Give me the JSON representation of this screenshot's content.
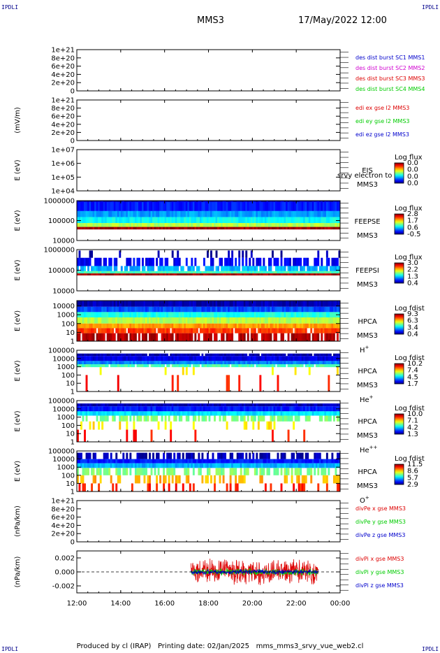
{
  "header": {
    "title": "MMS3",
    "date": "17/May/2022 12:00",
    "corner_label": "IPDLI"
  },
  "footer": {
    "producer": "Produced by cl (IRAP)",
    "printing_date": "Printing date: 02/Jan/2025",
    "filename": "mms_mms3_srvy_vue_web2.cl"
  },
  "colors": {
    "red": "#dd0000",
    "magenta": "#d000d0",
    "green": "#00cc00",
    "blue": "#0000cc",
    "spec_bg_blue": "#0033ff"
  },
  "chart_data": [
    {
      "id": "des-dist",
      "type": "line",
      "ylabel": "",
      "yticks": [
        "0",
        "2e+20",
        "4e+20",
        "6e+20",
        "8e+20",
        "1e+21"
      ],
      "ylim": [
        0,
        1e+21
      ],
      "dashed_zero": true,
      "legend": [
        {
          "text": "des dist burst SC1 MMS1",
          "color": "blue"
        },
        {
          "text": "des dist burst SC2 MMS2",
          "color": "magenta"
        },
        {
          "text": "des dist burst SC3 MMS3",
          "color": "red"
        },
        {
          "text": "des dist burst SC4 MMS4",
          "color": "green"
        }
      ],
      "series": []
    },
    {
      "id": "edi",
      "type": "line",
      "ylabel": "(mV/m)",
      "yticks": [
        "0",
        "2e+20",
        "4e+20",
        "6e+20",
        "8e+20",
        "1e+21"
      ],
      "ylim": [
        0,
        1e+21
      ],
      "dashed_zero": true,
      "legend": [
        {
          "text": "edi ex gse l2 MMS3",
          "color": "red"
        },
        {
          "text": "edi ey gse l2 MMS3",
          "color": "green"
        },
        {
          "text": "edi ez gse l2 MMS3",
          "color": "blue"
        }
      ],
      "series": []
    },
    {
      "id": "eis",
      "type": "heatmap",
      "ylabel": "E (eV)",
      "yticks": [
        "1e+04",
        "1e+05",
        "1e+06",
        "1e+07"
      ],
      "log": true,
      "ylim": [
        10000.0,
        10000000.0
      ],
      "instrument": "EIS",
      "overlay_text": "srvy electron to",
      "sc": "MMS3",
      "species": "",
      "cbar_title": "Log flux",
      "cbar_ticks": [
        "0.0",
        "0.0",
        "0.0",
        "0.0"
      ],
      "bands": []
    },
    {
      "id": "feepse",
      "type": "heatmap",
      "ylabel": "E (eV)",
      "yticks": [
        "10000",
        "100000",
        "1000000"
      ],
      "log": true,
      "ylim": [
        10000.0,
        1000000.0
      ],
      "instrument": "FEEPSE",
      "sc": "MMS3",
      "species": "",
      "cbar_title": "Log flux",
      "cbar_ticks": [
        "2.8",
        "1.7",
        "0.6",
        "-0.5"
      ],
      "bands": [
        {
          "from": 850000,
          "to": 1000000,
          "level": 0.06,
          "fill": 1.0
        },
        {
          "from": 300000,
          "to": 850000,
          "level": 0.15,
          "fill": 1.0
        },
        {
          "from": 150000,
          "to": 300000,
          "level": 0.28,
          "fill": 1.0
        },
        {
          "from": 75000,
          "to": 150000,
          "level": 0.38,
          "fill": 1.0
        },
        {
          "from": 48000,
          "to": 75000,
          "level": 0.55,
          "fill": 1.0
        },
        {
          "from": 36000,
          "to": 48000,
          "level": 0.97,
          "fill": 1.0
        }
      ]
    },
    {
      "id": "feepsi",
      "type": "heatmap",
      "ylabel": "E (eV)",
      "yticks": [
        "10000",
        "100000",
        "1000000"
      ],
      "log": true,
      "ylim": [
        10000.0,
        1000000.0
      ],
      "instrument": "FEEPSI",
      "sc": "MMS3",
      "species": "",
      "cbar_title": "Log flux",
      "cbar_ticks": [
        "3.0",
        "2.2",
        "1.3",
        "0.4"
      ],
      "bands": [
        {
          "from": 400000,
          "to": 900000,
          "level": 0.04,
          "fill": 0.18
        },
        {
          "from": 160000,
          "to": 400000,
          "level": 0.12,
          "fill": 0.55
        },
        {
          "from": 90000,
          "to": 160000,
          "level": 0.3,
          "fill": 0.8
        },
        {
          "from": 70000,
          "to": 90000,
          "level": 0.45,
          "fill": 1.0
        },
        {
          "from": 56000,
          "to": 70000,
          "level": 0.97,
          "fill": 1.0
        }
      ]
    },
    {
      "id": "hpca-h",
      "type": "heatmap",
      "ylabel": "E (eV)",
      "yticks": [
        "1",
        "10",
        "100",
        "1000",
        "10000"
      ],
      "log": true,
      "ylim": [
        1,
        40000
      ],
      "instrument": "HPCA",
      "sc": "MMS3",
      "species": "H",
      "species_sup": "+",
      "cbar_title": "Log fdist",
      "cbar_ticks": [
        "9.3",
        "6.3",
        "3.4",
        "0.4"
      ],
      "bands": [
        {
          "from": 8000,
          "to": 40000,
          "level": 0.05,
          "fill": 1.0
        },
        {
          "from": 2000,
          "to": 8000,
          "level": 0.2,
          "fill": 1.0
        },
        {
          "from": 500,
          "to": 2000,
          "level": 0.4,
          "fill": 1.0
        },
        {
          "from": 100,
          "to": 500,
          "level": 0.55,
          "fill": 1.0
        },
        {
          "from": 30,
          "to": 100,
          "level": 0.72,
          "fill": 1.0
        },
        {
          "from": 8,
          "to": 30,
          "level": 0.82,
          "fill": 0.9
        },
        {
          "from": 1,
          "to": 8,
          "level": 0.95,
          "fill": 0.75
        }
      ]
    },
    {
      "id": "hpca-he",
      "type": "heatmap",
      "ylabel": "E (eV)",
      "yticks": [
        "1",
        "10",
        "100",
        "1000",
        "10000",
        "100000"
      ],
      "log": true,
      "ylim": [
        1,
        100000
      ],
      "instrument": "HPCA",
      "sc": "MMS3",
      "species": "He",
      "species_sup": "+",
      "cbar_title": "Log fdist",
      "cbar_ticks": [
        "10.2",
        "7.4",
        "4.5",
        "1.7"
      ],
      "bands": [
        {
          "from": 20000,
          "to": 40000,
          "level": 0.04,
          "fill": 0.95
        },
        {
          "from": 5000,
          "to": 20000,
          "level": 0.1,
          "fill": 1.0
        },
        {
          "from": 2000,
          "to": 5000,
          "level": 0.25,
          "fill": 1.0
        },
        {
          "from": 900,
          "to": 2000,
          "level": 0.45,
          "fill": 0.9
        },
        {
          "from": 100,
          "to": 900,
          "level": 0.65,
          "fill": 0.08
        },
        {
          "from": 1,
          "to": 100,
          "level": 0.85,
          "fill": 0.05
        }
      ]
    },
    {
      "id": "hpca-hepp",
      "type": "heatmap",
      "ylabel": "E (eV)",
      "yticks": [
        "1",
        "10",
        "100",
        "1000",
        "10000",
        "100000"
      ],
      "log": true,
      "ylim": [
        1,
        100000
      ],
      "instrument": "HPCA",
      "sc": "MMS3",
      "species": "He",
      "species_sup": "++",
      "cbar_title": "Log fdist",
      "cbar_ticks": [
        "10.0",
        "7.1",
        "4.2",
        "1.3"
      ],
      "bands": [
        {
          "from": 20000,
          "to": 45000,
          "level": 0.05,
          "fill": 1.0
        },
        {
          "from": 5000,
          "to": 20000,
          "level": 0.15,
          "fill": 1.0
        },
        {
          "from": 1500,
          "to": 5000,
          "level": 0.35,
          "fill": 1.0
        },
        {
          "from": 300,
          "to": 1500,
          "level": 0.5,
          "fill": 0.6
        },
        {
          "from": 30,
          "to": 300,
          "level": 0.65,
          "fill": 0.15
        },
        {
          "from": 1,
          "to": 30,
          "level": 0.85,
          "fill": 0.08
        }
      ]
    },
    {
      "id": "hpca-o",
      "type": "heatmap",
      "ylabel": "E (eV)",
      "yticks": [
        "1",
        "10",
        "100",
        "1000",
        "10000",
        "100000"
      ],
      "log": true,
      "ylim": [
        1,
        100000
      ],
      "instrument": "HPCA",
      "sc": "MMS3",
      "species": "O",
      "species_sup": "+",
      "cbar_title": "Log fdist",
      "cbar_ticks": [
        "11.5",
        "8.6",
        "5.7",
        "2.9"
      ],
      "bands": [
        {
          "from": 10000,
          "to": 60000,
          "level": 0.05,
          "fill": 0.55
        },
        {
          "from": 3000,
          "to": 10000,
          "level": 0.15,
          "fill": 1.0
        },
        {
          "from": 800,
          "to": 3000,
          "level": 0.3,
          "fill": 1.0
        },
        {
          "from": 100,
          "to": 800,
          "level": 0.5,
          "fill": 0.6
        },
        {
          "from": 10,
          "to": 100,
          "level": 0.7,
          "fill": 0.35
        },
        {
          "from": 1,
          "to": 10,
          "level": 0.85,
          "fill": 0.25
        }
      ]
    },
    {
      "id": "divpe",
      "type": "line",
      "ylabel": "(nPa/km)",
      "yticks": [
        "0",
        "2e+20",
        "4e+20",
        "6e+20",
        "8e+20",
        "1e+21"
      ],
      "ylim": [
        0,
        1e+21
      ],
      "dashed_zero": true,
      "legend": [
        {
          "text": "divPe x gse MMS3",
          "color": "red"
        },
        {
          "text": "divPe y gse MMS3",
          "color": "green"
        },
        {
          "text": "divPe z gse MMS3",
          "color": "blue"
        }
      ],
      "series": []
    },
    {
      "id": "divpi",
      "type": "line",
      "ylabel": "(nPa/km)",
      "yticks": [
        "-0.002",
        "0.000",
        "0.002"
      ],
      "ylim": [
        -0.003,
        0.003
      ],
      "dashed_zero": true,
      "legend": [
        {
          "text": "divPi x gse MMS3",
          "color": "red"
        },
        {
          "text": "divPi y gse MMS3",
          "color": "green"
        },
        {
          "text": "divPi z gse MMS3",
          "color": "blue"
        }
      ],
      "series": [
        {
          "color": "red",
          "t_start": 17.2,
          "t_end": 23.0,
          "amplitude": 0.0022
        },
        {
          "color": "green",
          "t_start": 17.2,
          "t_end": 23.0,
          "amplitude": 0.0006
        },
        {
          "color": "blue",
          "t_start": 17.2,
          "t_end": 23.0,
          "amplitude": 0.0004
        }
      ]
    }
  ],
  "time_axis": {
    "labels": [
      "12:00",
      "14:00",
      "16:00",
      "18:00",
      "20:00",
      "22:00",
      "00:00"
    ],
    "hours": [
      12,
      14,
      16,
      18,
      20,
      22,
      24
    ],
    "range": [
      12,
      24
    ]
  }
}
